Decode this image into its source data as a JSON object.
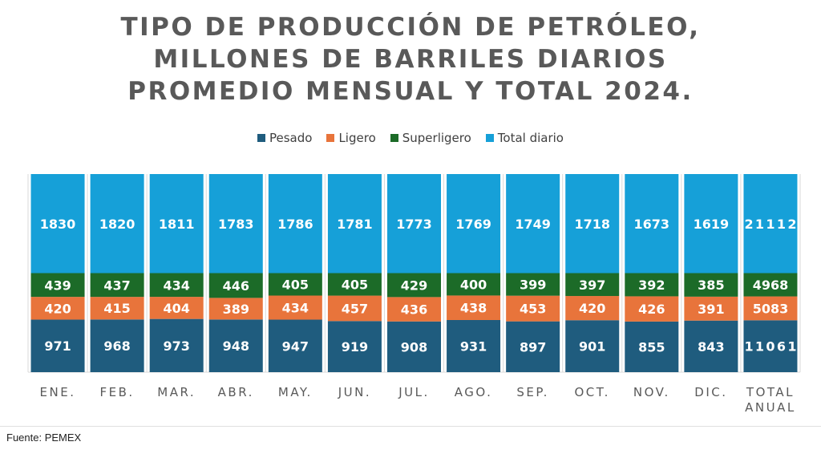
{
  "chart_data": {
    "type": "bar",
    "stacked": true,
    "title_lines": [
      "TIPO DE PRODUCCIÓN DE PETRÓLEO,",
      "MILLONES DE BARRILES DIARIOS",
      "PROMEDIO MENSUAL Y TOTAL 2024."
    ],
    "categories": [
      "ENE.",
      "FEB.",
      "MAR.",
      "ABR.",
      "MAY.",
      "JUN.",
      "JUL.",
      "AGO.",
      "SEP.",
      "OCT.",
      "NOV.",
      "DIC.",
      "TOTAL ANUAL"
    ],
    "series": [
      {
        "name": "Pesado",
        "color": "#1f5c7e",
        "values": [
          971,
          968,
          973,
          948,
          947,
          919,
          908,
          931,
          897,
          901,
          855,
          843,
          11061
        ]
      },
      {
        "name": "Ligero",
        "color": "#e8743b",
        "values": [
          420,
          415,
          404,
          389,
          434,
          457,
          436,
          438,
          453,
          420,
          426,
          391,
          5083
        ]
      },
      {
        "name": "Superligero",
        "color": "#1c6b28",
        "values": [
          439,
          437,
          434,
          446,
          405,
          405,
          429,
          400,
          399,
          397,
          392,
          385,
          4968
        ]
      },
      {
        "name": "Total diario",
        "color": "#16a0d8",
        "values": [
          1830,
          1820,
          1811,
          1783,
          1786,
          1781,
          1773,
          1769,
          1749,
          1718,
          1673,
          1619,
          21112
        ]
      }
    ],
    "stack_display": "percent",
    "legend_position": "top",
    "grid": false
  },
  "source": "Fuente: PEMEX"
}
